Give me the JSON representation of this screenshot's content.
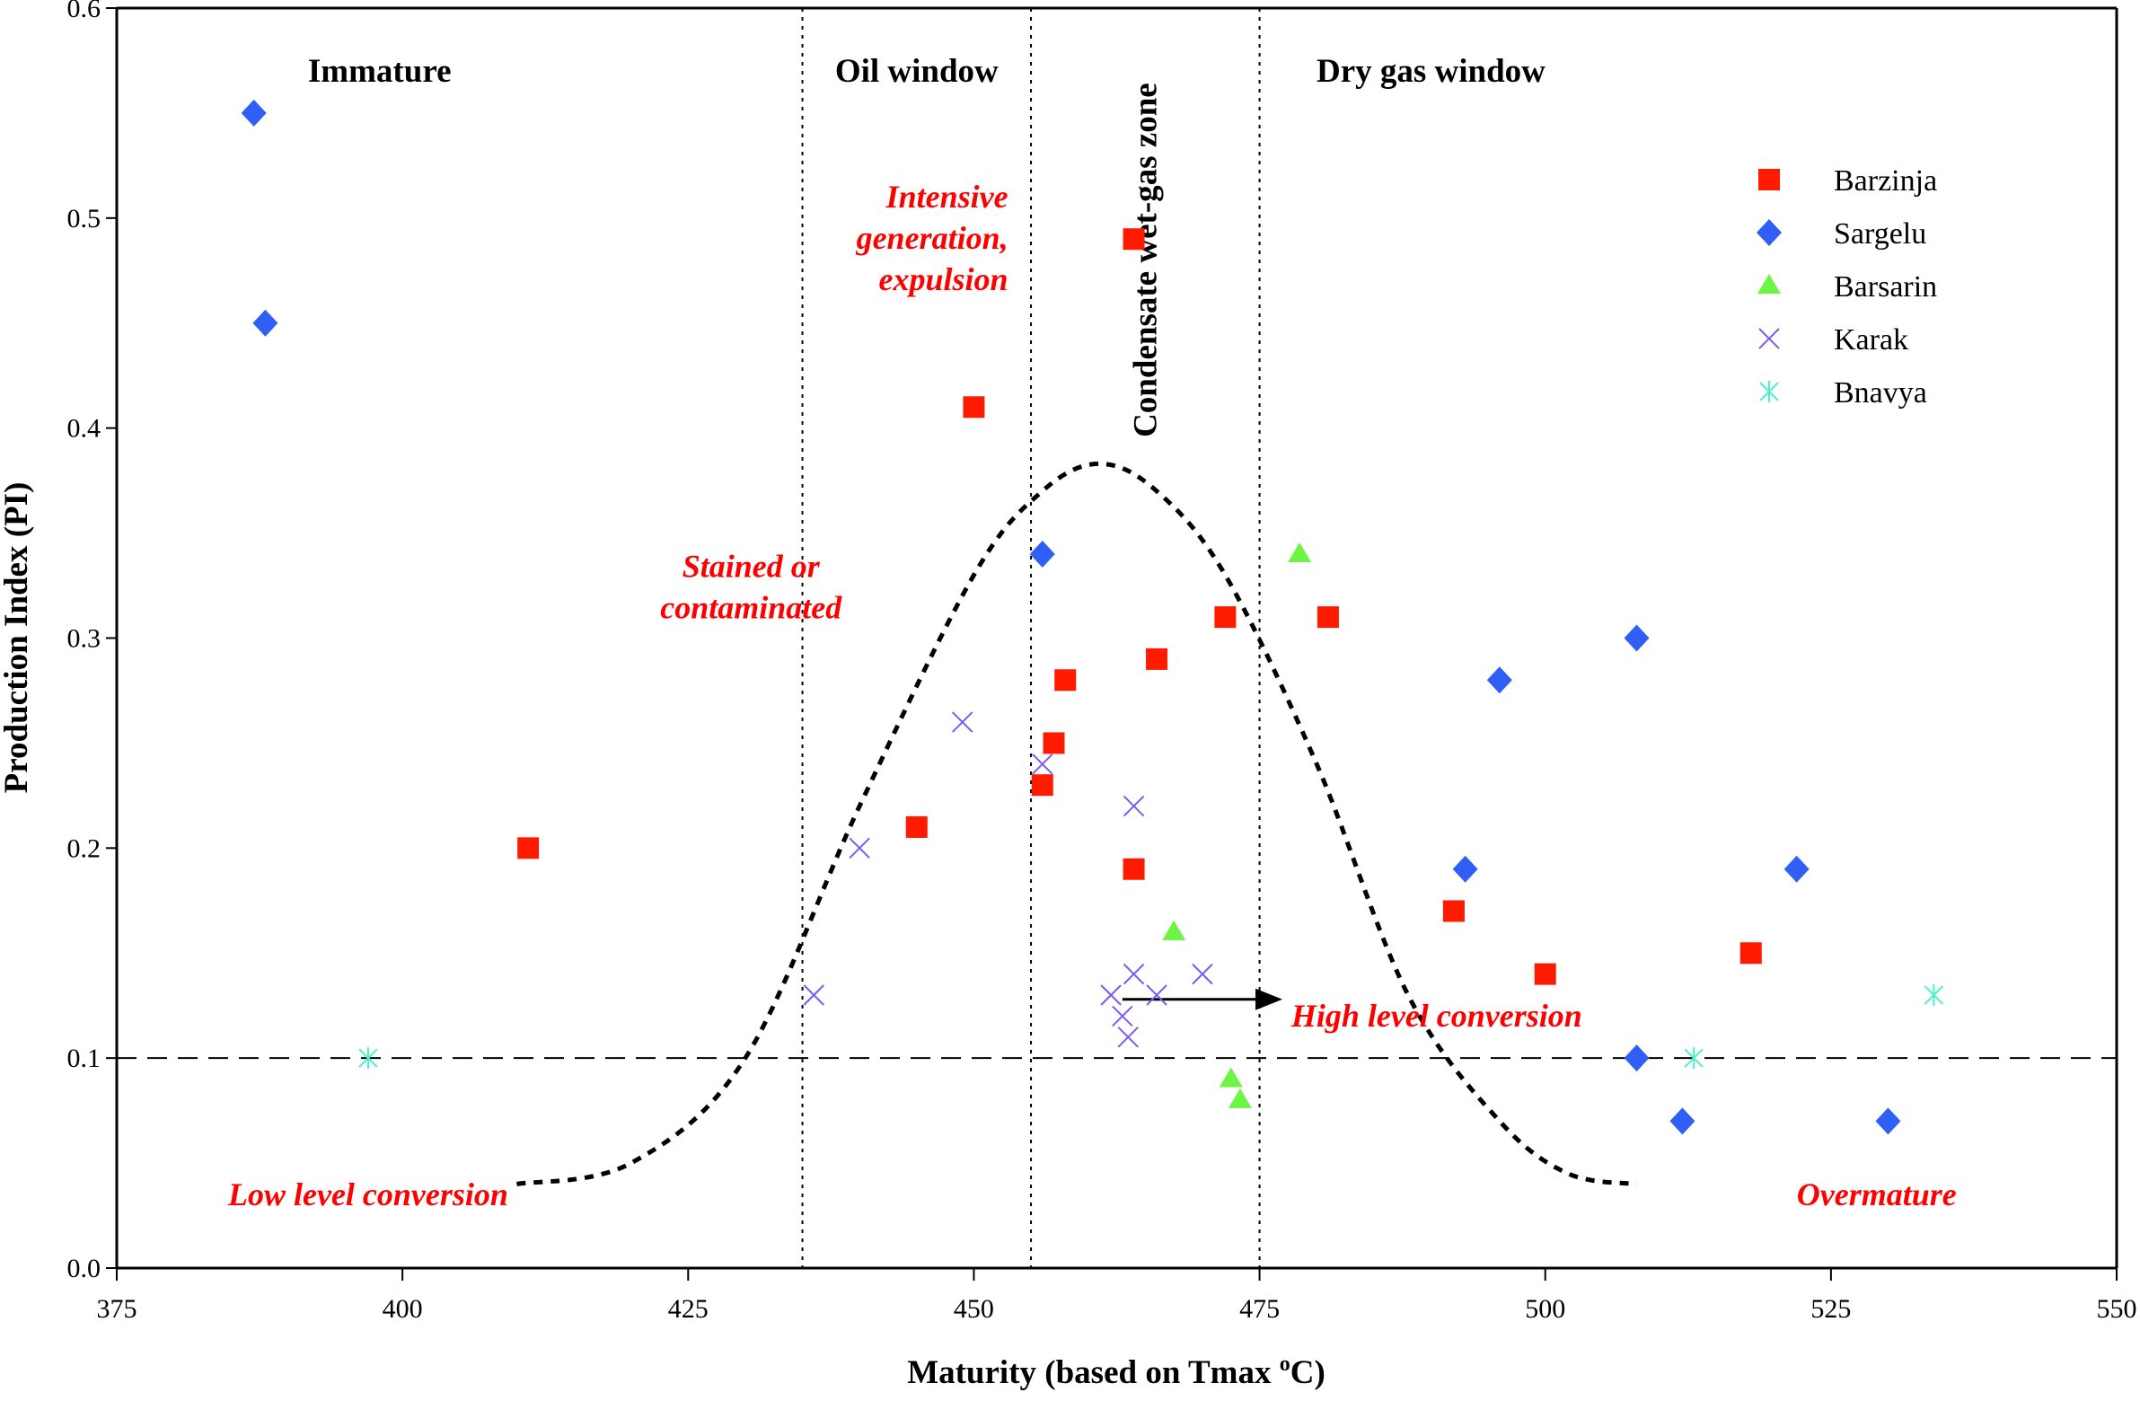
{
  "chart_data": {
    "type": "scatter",
    "title": "",
    "xlabel": "Maturity (based on Tmax °C)",
    "xlabel_main": "Maturity (based on Tmax ",
    "xlabel_sup": "o",
    "xlabel_end": "C)",
    "ylabel": "Production Index (PI)",
    "xlim": [
      375,
      550
    ],
    "ylim": [
      0.0,
      0.6
    ],
    "xticks": [
      "375",
      "400",
      "425",
      "450",
      "475",
      "500",
      "525",
      "550"
    ],
    "xtick_values": [
      375,
      400,
      425,
      450,
      475,
      500,
      525,
      550
    ],
    "yticks": [
      "0.0",
      "0.1",
      "0.2",
      "0.3",
      "0.4",
      "0.5",
      "0.6"
    ],
    "ytick_values": [
      0.0,
      0.1,
      0.2,
      0.3,
      0.4,
      0.5,
      0.6
    ],
    "grid": false,
    "legend_position": "top-right",
    "series": [
      {
        "name": "Barzinja",
        "marker": "square",
        "color": "#ff1a00",
        "points": [
          [
            411,
            0.2
          ],
          [
            445,
            0.21
          ],
          [
            450,
            0.41
          ],
          [
            456,
            0.23
          ],
          [
            457,
            0.25
          ],
          [
            458,
            0.28
          ],
          [
            464,
            0.49
          ],
          [
            464,
            0.19
          ],
          [
            466,
            0.29
          ],
          [
            472,
            0.31
          ],
          [
            481,
            0.31
          ],
          [
            492,
            0.17
          ],
          [
            500,
            0.14
          ],
          [
            518,
            0.15
          ]
        ]
      },
      {
        "name": "Sargelu",
        "marker": "diamond",
        "color": "#2f5ff5",
        "points": [
          [
            387,
            0.55
          ],
          [
            388,
            0.45
          ],
          [
            456,
            0.34
          ],
          [
            493,
            0.19
          ],
          [
            496,
            0.28
          ],
          [
            508,
            0.3
          ],
          [
            508,
            0.1
          ],
          [
            512,
            0.07
          ],
          [
            522,
            0.19
          ],
          [
            530,
            0.07
          ]
        ]
      },
      {
        "name": "Barsarin",
        "marker": "triangle",
        "color": "#6cf542",
        "points": [
          [
            478.5,
            0.34
          ],
          [
            467.5,
            0.16
          ],
          [
            472.5,
            0.09
          ],
          [
            473.3,
            0.08
          ]
        ]
      },
      {
        "name": "Karak",
        "marker": "x",
        "color": "#7b5cf0",
        "points": [
          [
            449,
            0.26
          ],
          [
            440,
            0.2
          ],
          [
            436,
            0.13
          ],
          [
            456,
            0.24
          ],
          [
            464,
            0.22
          ],
          [
            464,
            0.14
          ],
          [
            462,
            0.13
          ],
          [
            466,
            0.13
          ],
          [
            470,
            0.14
          ],
          [
            463,
            0.12
          ],
          [
            463.5,
            0.11
          ]
        ]
      },
      {
        "name": "Bnavya",
        "marker": "asterisk",
        "color": "#4ff0c8",
        "points": [
          [
            397,
            0.1
          ],
          [
            513,
            0.1
          ],
          [
            534,
            0.13
          ]
        ]
      }
    ],
    "reference_lines": {
      "vertical_dotted_x": [
        435,
        455,
        475
      ],
      "horizontal_dashed_y": 0.1
    },
    "curve": {
      "style": "dotted",
      "points": [
        [
          410,
          0.04
        ],
        [
          420,
          0.05
        ],
        [
          430,
          0.1
        ],
        [
          440,
          0.22
        ],
        [
          450,
          0.33
        ],
        [
          456,
          0.37
        ],
        [
          461,
          0.383
        ],
        [
          466,
          0.37
        ],
        [
          472,
          0.33
        ],
        [
          480,
          0.24
        ],
        [
          488,
          0.13
        ],
        [
          496,
          0.07
        ],
        [
          502,
          0.045
        ],
        [
          508,
          0.04
        ]
      ]
    },
    "arrow": {
      "from": [
        463,
        0.128
      ],
      "to": [
        477,
        0.128
      ]
    },
    "zone_labels": [
      {
        "text": "Immature",
        "x": 398,
        "y": 0.57
      },
      {
        "text": "Oil window",
        "x": 445,
        "y": 0.57
      },
      {
        "text": "Dry gas window",
        "x": 490,
        "y": 0.57
      }
    ],
    "vertical_label": {
      "text": "Condensate wet-gas zone",
      "x": 465,
      "y": 0.48
    },
    "annotations": [
      {
        "lines": [
          "Intensive",
          "generation,",
          "expulsion"
        ],
        "x": 453,
        "y": 0.505,
        "anchor": "end"
      },
      {
        "lines": [
          "Stained or",
          "contaminated"
        ],
        "x": 430.5,
        "y": 0.329,
        "anchor": "middle"
      },
      {
        "lines": [
          "High level conversion"
        ],
        "x": 490.5,
        "y": 0.115,
        "anchor": "middle"
      },
      {
        "lines": [
          "Low level conversion"
        ],
        "x": 397,
        "y": 0.03,
        "anchor": "middle"
      },
      {
        "lines": [
          "Overmature"
        ],
        "x": 529,
        "y": 0.03,
        "anchor": "middle"
      }
    ]
  }
}
